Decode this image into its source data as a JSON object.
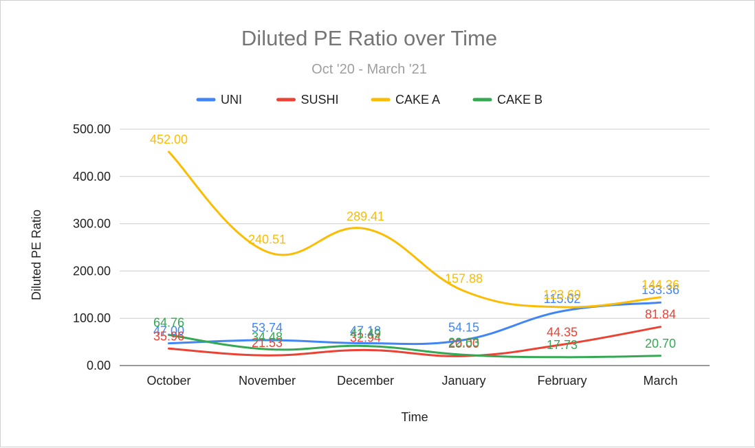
{
  "chart_data": {
    "type": "line",
    "title": "Diluted PE Ratio over Time",
    "subtitle": "Oct '20 - March '21",
    "xlabel": "Time",
    "ylabel": "Diluted PE Ratio",
    "ylim": [
      0,
      500
    ],
    "yticks": [
      "0.00",
      "100.00",
      "200.00",
      "300.00",
      "400.00",
      "500.00"
    ],
    "yticks_values": [
      0,
      100,
      200,
      300,
      400,
      500
    ],
    "grid": true,
    "legend_position": "top",
    "categories": [
      "October",
      "November",
      "December",
      "January",
      "February",
      "March"
    ],
    "series": [
      {
        "name": "UNI",
        "color": "#4285f4",
        "values": [
          47.0,
          53.74,
          47.18,
          54.15,
          115.02,
          133.36
        ],
        "labels": [
          "47.00",
          "53.74",
          "47.18",
          "54.15",
          "115.02",
          "133.36"
        ]
      },
      {
        "name": "SUSHI",
        "color": "#ea4335",
        "values": [
          35.96,
          21.53,
          32.94,
          20.0,
          44.35,
          81.84
        ],
        "labels": [
          "35.96",
          "21.53",
          "32.94",
          "20.00",
          "44.35",
          "81.84"
        ]
      },
      {
        "name": "CAKE A",
        "color": "#fbbc04",
        "values": [
          452.0,
          240.51,
          289.41,
          157.88,
          123.69,
          144.36
        ],
        "labels": [
          "452.00",
          "240.51",
          "289.41",
          "157.88",
          "123.69",
          "144.36"
        ]
      },
      {
        "name": "CAKE B",
        "color": "#34a853",
        "values": [
          64.76,
          34.48,
          41.49,
          22.63,
          17.73,
          20.7
        ],
        "labels": [
          "64.76",
          "34.48",
          "41.49",
          "22.63",
          "17.73",
          "20.70"
        ]
      }
    ]
  }
}
